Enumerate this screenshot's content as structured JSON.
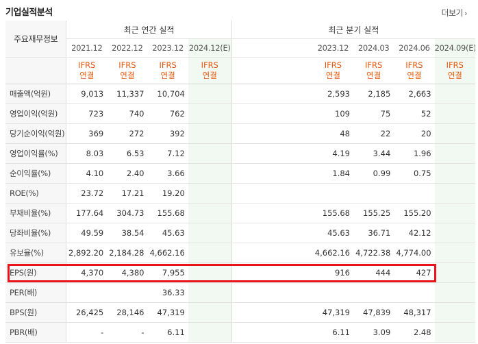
{
  "header": {
    "title": "기업실적분석",
    "more_label": "더보기",
    "more_icon": "chevron-right-icon"
  },
  "table": {
    "corner_label": "주요재무정보",
    "annual_group": "최근 연간 실적",
    "quarter_group": "최근 분기 실적",
    "annual_periods": [
      "2021.12",
      "2022.12",
      "2023.12",
      "2024.12(E)"
    ],
    "quarter_periods": [
      "2023.12",
      "2024.03",
      "2024.06",
      "2024.09(E)"
    ],
    "standard_top": "IFRS",
    "standard_bottom": "연결",
    "rows": [
      {
        "label": "매출액(억원)",
        "annual": [
          "9,013",
          "11,337",
          "10,704",
          ""
        ],
        "quarter": [
          "2,593",
          "2,185",
          "2,663",
          ""
        ]
      },
      {
        "label": "영업이익(억원)",
        "annual": [
          "723",
          "740",
          "762",
          ""
        ],
        "quarter": [
          "109",
          "75",
          "52",
          ""
        ]
      },
      {
        "label": "당기순이익(억원)",
        "annual": [
          "369",
          "272",
          "392",
          ""
        ],
        "quarter": [
          "48",
          "22",
          "20",
          ""
        ]
      },
      {
        "label": "영업이익률(%)",
        "annual": [
          "8.03",
          "6.53",
          "7.12",
          ""
        ],
        "quarter": [
          "4.19",
          "3.44",
          "1.96",
          ""
        ]
      },
      {
        "label": "순이익률(%)",
        "annual": [
          "4.10",
          "2.40",
          "3.66",
          ""
        ],
        "quarter": [
          "1.84",
          "0.99",
          "0.75",
          ""
        ]
      },
      {
        "label": "ROE(%)",
        "annual": [
          "23.72",
          "17.21",
          "19.20",
          ""
        ],
        "quarter": [
          "",
          "",
          "",
          ""
        ]
      },
      {
        "label": "부채비율(%)",
        "annual": [
          "177.64",
          "304.73",
          "155.68",
          ""
        ],
        "quarter": [
          "155.68",
          "155.25",
          "155.20",
          ""
        ]
      },
      {
        "label": "당좌비율(%)",
        "annual": [
          "49.59",
          "38.54",
          "45.63",
          ""
        ],
        "quarter": [
          "45.63",
          "36.71",
          "42.12",
          ""
        ]
      },
      {
        "label": "유보율(%)",
        "annual": [
          "2,892.20",
          "2,184.28",
          "4,662.16",
          ""
        ],
        "quarter": [
          "4,662.16",
          "4,722.38",
          "4,774.00",
          ""
        ]
      },
      {
        "label": "EPS(원)",
        "annual": [
          "4,370",
          "4,380",
          "7,955",
          ""
        ],
        "quarter": [
          "916",
          "444",
          "427",
          ""
        ]
      },
      {
        "label": "PER(배)",
        "annual": [
          "",
          "",
          "36.33",
          ""
        ],
        "quarter": [
          "",
          "",
          "",
          ""
        ]
      },
      {
        "label": "BPS(원)",
        "annual": [
          "26,425",
          "28,146",
          "47,319",
          ""
        ],
        "quarter": [
          "47,319",
          "47,839",
          "48,317",
          ""
        ]
      },
      {
        "label": "PBR(배)",
        "annual": [
          "-",
          "-",
          "6.11",
          ""
        ],
        "quarter": [
          "6.11",
          "3.09",
          "2.48",
          ""
        ]
      }
    ]
  }
}
